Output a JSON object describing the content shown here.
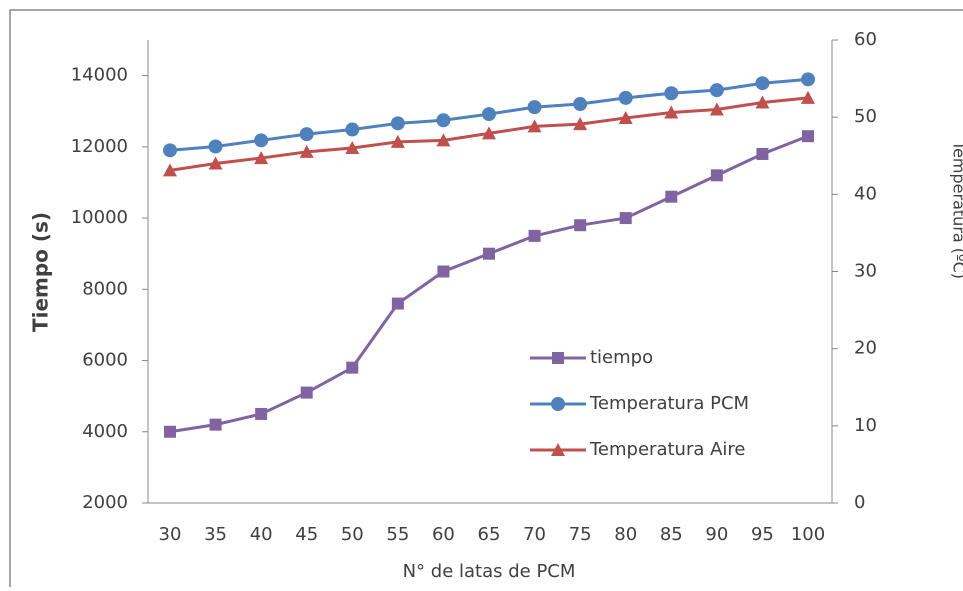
{
  "chart_data": {
    "type": "line",
    "x_label": "N° de latas de PCM",
    "y_label": "Tiempo (s)",
    "y2_label": "Temperatura (ºC)",
    "categories": [
      "30",
      "35",
      "40",
      "45",
      "50",
      "55",
      "60",
      "65",
      "70",
      "75",
      "80",
      "85",
      "90",
      "95",
      "100"
    ],
    "ylim": [
      2000,
      15000
    ],
    "yticks": [
      2000,
      4000,
      6000,
      8000,
      10000,
      12000,
      14000
    ],
    "y2lim": [
      0,
      60
    ],
    "y2ticks": [
      0,
      10,
      20,
      30,
      40,
      50,
      60
    ],
    "series": [
      {
        "name": "tiempo",
        "color": "#8064a2",
        "marker": "square",
        "values": [
          4000,
          4200,
          4500,
          5100,
          5800,
          7600,
          8500,
          9000,
          9500,
          9800,
          10000,
          10600,
          11200,
          11800,
          12300
        ]
      },
      {
        "name": "Temperatura PCM",
        "color": "#4f81bd",
        "marker": "circle",
        "axis": "y2",
        "values": [
          45.7,
          46.2,
          47,
          47.8,
          48.4,
          49.2,
          49.6,
          50.4,
          51.3,
          51.7,
          52.5,
          53.1,
          53.5,
          54.4,
          54.9
        ]
      },
      {
        "name": "Temperatura Aire",
        "color": "#c0504d",
        "marker": "triangle",
        "axis": "y2",
        "values": [
          43.1,
          44,
          44.7,
          45.5,
          46,
          46.8,
          47,
          47.9,
          48.8,
          49.1,
          49.9,
          50.6,
          51,
          51.9,
          52.5
        ]
      }
    ]
  }
}
